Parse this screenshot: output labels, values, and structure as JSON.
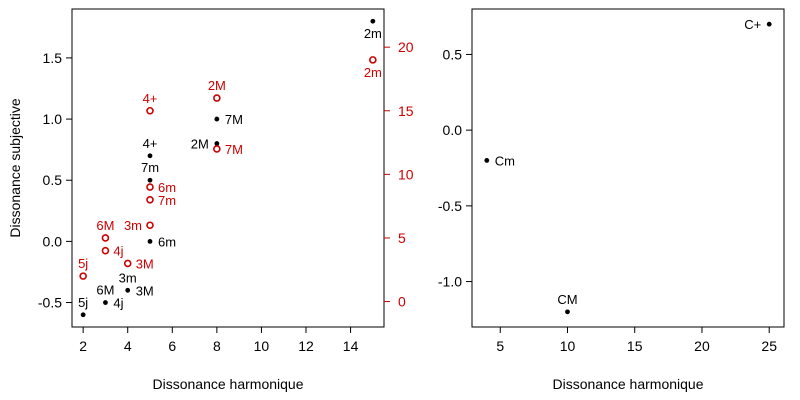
{
  "figure": {
    "colors": {
      "black": "#000000",
      "red": "#cc0000",
      "background": "#ffffff"
    }
  },
  "chart_data": [
    {
      "type": "scatter",
      "title": "",
      "xlabel": "Dissonance harmonique",
      "ylabel": "Dissonance subjective",
      "xlim": [
        1.5,
        15.5
      ],
      "ylim": [
        -0.7,
        1.9
      ],
      "xticks": [
        2,
        4,
        6,
        8,
        10,
        12,
        14
      ],
      "xtick_labels": [
        "2",
        "4",
        "6",
        "8",
        "10",
        "12",
        "14"
      ],
      "yticks": [
        -0.5,
        0.0,
        0.5,
        1.0,
        1.5
      ],
      "ytick_labels": [
        "-0.5",
        "0.0",
        "0.5",
        "1.0",
        "1.5"
      ],
      "y2lim": [
        -2.0,
        23.0
      ],
      "y2ticks": [
        0,
        5,
        10,
        15,
        20
      ],
      "y2tick_labels": [
        "0",
        "5",
        "10",
        "15",
        "20"
      ],
      "grid": false,
      "series": [
        {
          "color": "#000000",
          "marker": "filled-circle",
          "axis": "left",
          "points": [
            {
              "label": "2m",
              "x": 15,
              "y": 1.8,
              "label_pos": "below"
            },
            {
              "label": "7M",
              "x": 8,
              "y": 1.0,
              "label_pos": "right"
            },
            {
              "label": "2M",
              "x": 8,
              "y": 0.8,
              "label_pos": "left"
            },
            {
              "label": "4+",
              "x": 5,
              "y": 0.7,
              "label_pos": "above"
            },
            {
              "label": "7m",
              "x": 5,
              "y": 0.5,
              "label_pos": "above"
            },
            {
              "label": "6m",
              "x": 5,
              "y": 0.0,
              "label_pos": "right"
            },
            {
              "label": "3m",
              "x": 4,
              "y": -0.4,
              "label_pos": "above"
            },
            {
              "label": "3M",
              "x": 4,
              "y": -0.4,
              "label_pos": "right"
            },
            {
              "label": "6M",
              "x": 3,
              "y": -0.5,
              "label_pos": "above"
            },
            {
              "label": "4j",
              "x": 3,
              "y": -0.5,
              "label_pos": "right"
            },
            {
              "label": "5j",
              "x": 2,
              "y": -0.6,
              "label_pos": "above"
            }
          ]
        },
        {
          "color": "#cc0000",
          "marker": "open-circle",
          "axis": "right",
          "points": [
            {
              "label": "2m",
              "x": 15,
              "y": 19,
              "label_pos": "below"
            },
            {
              "label": "2M",
              "x": 8,
              "y": 16,
              "label_pos": "above"
            },
            {
              "label": "4+",
              "x": 5,
              "y": 15,
              "label_pos": "above"
            },
            {
              "label": "7M",
              "x": 8,
              "y": 12,
              "label_pos": "right"
            },
            {
              "label": "6m",
              "x": 5,
              "y": 9,
              "label_pos": "right"
            },
            {
              "label": "7m",
              "x": 5,
              "y": 8,
              "label_pos": "right"
            },
            {
              "label": "3m",
              "x": 5,
              "y": 6,
              "label_pos": "left"
            },
            {
              "label": "6M",
              "x": 3,
              "y": 5,
              "label_pos": "above"
            },
            {
              "label": "4j",
              "x": 3,
              "y": 4,
              "label_pos": "right"
            },
            {
              "label": "3M",
              "x": 4,
              "y": 3,
              "label_pos": "right"
            },
            {
              "label": "5j",
              "x": 2,
              "y": 2,
              "label_pos": "above"
            }
          ]
        }
      ]
    },
    {
      "type": "scatter",
      "title": "",
      "xlabel": "Dissonance harmonique",
      "ylabel": "",
      "xlim": [
        2.9,
        26.1
      ],
      "ylim": [
        -1.3,
        0.8
      ],
      "xticks": [
        5,
        10,
        15,
        20,
        25
      ],
      "xtick_labels": [
        "5",
        "10",
        "15",
        "20",
        "25"
      ],
      "yticks": [
        -1.0,
        -0.5,
        0.0,
        0.5
      ],
      "ytick_labels": [
        "-1.0",
        "-0.5",
        "0.0",
        "0.5"
      ],
      "grid": false,
      "series": [
        {
          "color": "#000000",
          "marker": "filled-circle",
          "axis": "left",
          "points": [
            {
              "label": "C+",
              "x": 25,
              "y": 0.7,
              "label_pos": "left"
            },
            {
              "label": "Cm",
              "x": 4,
              "y": -0.2,
              "label_pos": "right"
            },
            {
              "label": "CM",
              "x": 10,
              "y": -1.2,
              "label_pos": "above"
            }
          ]
        }
      ]
    }
  ]
}
